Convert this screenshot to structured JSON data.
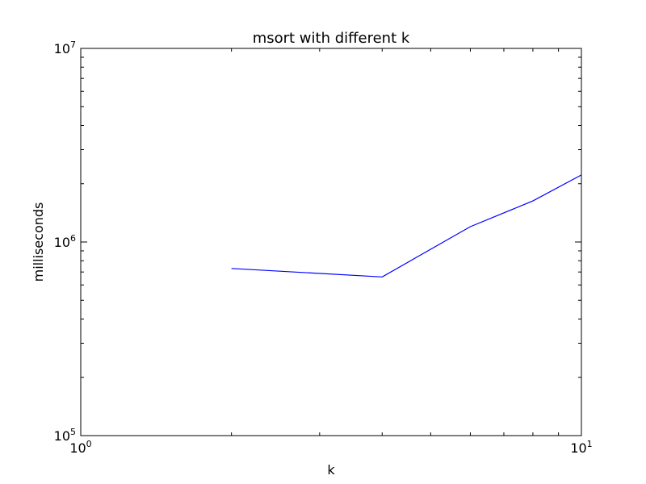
{
  "chart_data": {
    "type": "line",
    "title": "msort with different k",
    "xlabel": "k",
    "ylabel": "milliseconds",
    "xscale": "log",
    "yscale": "log",
    "xlim": [
      1,
      10
    ],
    "ylim": [
      100000,
      10000000
    ],
    "grid": false,
    "x_ticks": [
      {
        "value": 1,
        "base": "10",
        "exp": "0"
      },
      {
        "value": 10,
        "base": "10",
        "exp": "1"
      }
    ],
    "y_ticks": [
      {
        "value": 100000,
        "base": "10",
        "exp": "5"
      },
      {
        "value": 1000000,
        "base": "10",
        "exp": "6"
      },
      {
        "value": 10000000,
        "base": "10",
        "exp": "7"
      }
    ],
    "series": [
      {
        "color": "#0000ff",
        "x": [
          2,
          4,
          6,
          8,
          10
        ],
        "y": [
          730000,
          660000,
          1200000,
          1630000,
          2220000
        ]
      }
    ]
  }
}
